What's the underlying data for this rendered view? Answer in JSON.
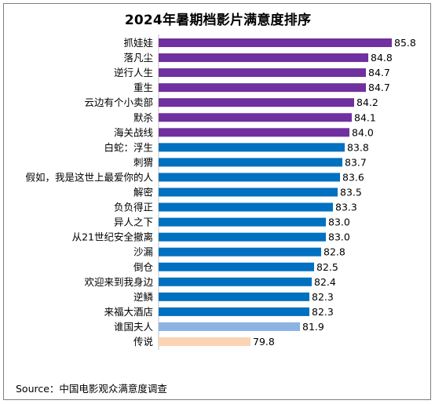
{
  "chart_data": {
    "type": "bar",
    "orientation": "horizontal",
    "title": "2024年暑期档影片满意度排序",
    "source": "Source：中国电影观众满意度调查",
    "categories": [
      "抓娃娃",
      "落凡尘",
      "逆行人生",
      "重生",
      "云边有个小卖部",
      "默杀",
      "海关战线",
      "白蛇：浮生",
      "刺猬",
      "假如，我是这世上最爱你的人",
      "解密",
      "负负得正",
      "异人之下",
      "从21世纪安全撤离",
      "沙漏",
      "倒仓",
      "欢迎来到我身边",
      "逆鳞",
      "来福大酒店",
      "谁国夫人",
      "传说"
    ],
    "values": [
      85.8,
      84.8,
      84.7,
      84.7,
      84.2,
      84.1,
      84.0,
      83.8,
      83.7,
      83.6,
      83.5,
      83.3,
      83.0,
      83.0,
      82.8,
      82.5,
      82.4,
      82.3,
      82.3,
      81.9,
      79.8
    ],
    "value_labels": [
      "85.8",
      "84.8",
      "84.7",
      "84.7",
      "84.2",
      "84.1",
      "84.0",
      "83.8",
      "83.7",
      "83.6",
      "83.5",
      "83.3",
      "83.0",
      "83.0",
      "82.8",
      "82.5",
      "82.4",
      "82.3",
      "82.3",
      "81.9",
      "79.8"
    ],
    "colors": [
      "#7030a0",
      "#7030a0",
      "#7030a0",
      "#7030a0",
      "#7030a0",
      "#7030a0",
      "#7030a0",
      "#0070c0",
      "#0070c0",
      "#0070c0",
      "#0070c0",
      "#0070c0",
      "#0070c0",
      "#0070c0",
      "#0070c0",
      "#0070c0",
      "#0070c0",
      "#0070c0",
      "#0070c0",
      "#8db3e2",
      "#fbd4b4"
    ],
    "xlim": [
      75.9,
      85.8
    ],
    "grid": false,
    "legend": "none"
  }
}
